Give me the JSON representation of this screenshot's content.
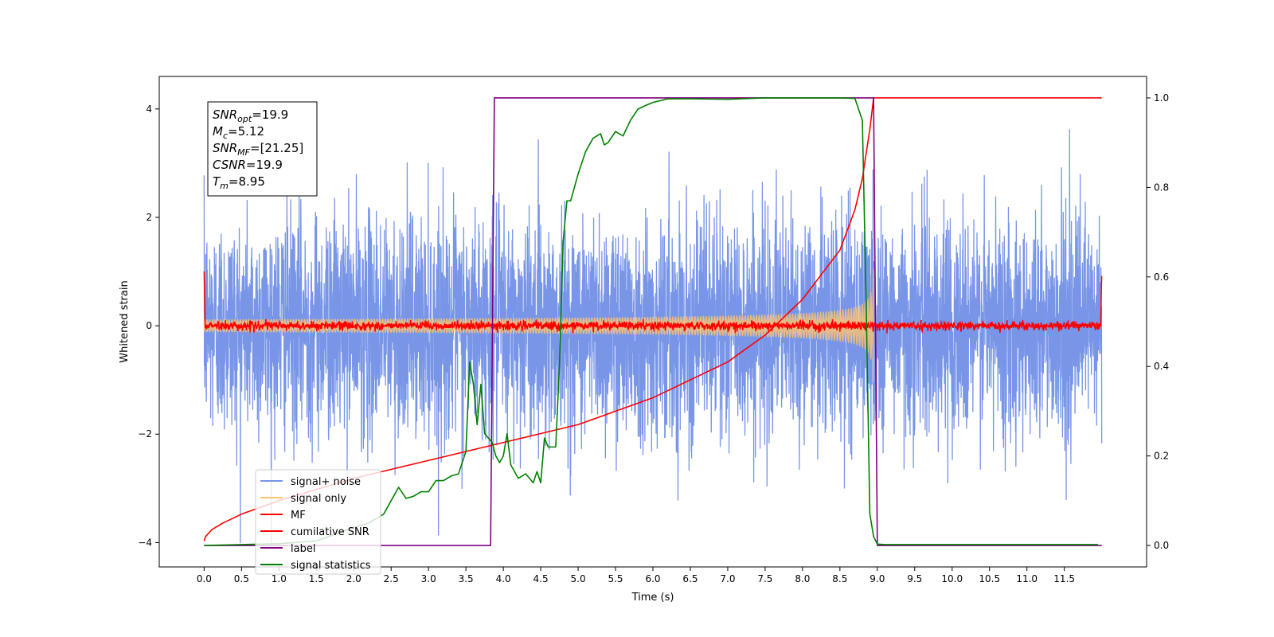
{
  "chart_data": {
    "type": "line",
    "title": "",
    "xlabel": "Time (s)",
    "ylabel": "Whitened strain",
    "xlim": [
      -0.6,
      12.6
    ],
    "ylim": [
      -4.45,
      4.6
    ],
    "y2lim": [
      -0.048,
      1.048
    ],
    "xticks": [
      0.0,
      0.5,
      1.0,
      1.5,
      2.0,
      2.5,
      3.0,
      3.5,
      4.0,
      4.5,
      5.0,
      5.5,
      6.0,
      6.5,
      7.0,
      7.5,
      8.0,
      8.5,
      9.0,
      9.5,
      10.0,
      10.5,
      11.0,
      11.5
    ],
    "xtick_labels": [
      "0.0",
      "0.5",
      "1.0",
      "1.5",
      "2.0",
      "2.5",
      "3.0",
      "3.5",
      "4.0",
      "4.5",
      "5.0",
      "5.5",
      "6.0",
      "6.5",
      "7.0",
      "7.5",
      "8.0",
      "8.5",
      "9.0",
      "9.5",
      "10.0",
      "10.5",
      "11.0",
      "11.5"
    ],
    "yticks": [
      -4,
      -2,
      0,
      2,
      4
    ],
    "ytick_labels": [
      "−4",
      "−2",
      "0",
      "2",
      "4"
    ],
    "y2ticks": [
      0.0,
      0.2,
      0.4,
      0.6,
      0.8,
      1.0
    ],
    "y2tick_labels": [
      "0.0",
      "0.2",
      "0.4",
      "0.6",
      "0.8",
      "1.0"
    ],
    "grid": false,
    "legend_position": "lower-left",
    "annotation": {
      "lines": [
        {
          "base": "SNR",
          "sub": "opt",
          "value": "=19.9"
        },
        {
          "base": "M",
          "sub": "c",
          "value": "=5.12"
        },
        {
          "base": "SNR",
          "sub": "MF",
          "value": "=[21.25]"
        },
        {
          "base": "CSNR",
          "sub": "",
          "value": "=19.9"
        },
        {
          "base": "T",
          "sub": "m",
          "value": "=8.95"
        }
      ]
    },
    "series": [
      {
        "name": "signal+ noise",
        "color": "#7895e8",
        "axis": "left",
        "kind": "noise",
        "x_range": [
          0.0,
          12.0
        ],
        "amplitude_std": 1.0,
        "peak_min": -4.0,
        "peak_max": 4.15
      },
      {
        "name": "signal only",
        "color": "#ffc36e",
        "axis": "left",
        "kind": "chirp",
        "x_range": [
          0.0,
          8.95
        ],
        "envelope_start": 0.12,
        "envelope_peak": 1.05,
        "merger_time": 8.95
      },
      {
        "name": "MF",
        "color": "#ff0000",
        "axis": "left",
        "kind": "noise",
        "x_range": [
          0.0,
          12.0
        ],
        "amplitude_std": 0.04,
        "edge_values": [
          1.0,
          0.92
        ]
      },
      {
        "name": "cumilative SNR",
        "color": "#ff0000",
        "axis": "right",
        "x": [
          0.0,
          0.02,
          0.1,
          0.25,
          0.5,
          1.0,
          1.5,
          2.0,
          2.5,
          3.0,
          3.5,
          4.0,
          4.5,
          5.0,
          5.5,
          6.0,
          6.5,
          7.0,
          7.5,
          8.0,
          8.5,
          8.7,
          8.8,
          8.9,
          8.95,
          12.0
        ],
        "values": [
          0.01,
          0.02,
          0.035,
          0.05,
          0.07,
          0.1,
          0.125,
          0.15,
          0.17,
          0.19,
          0.21,
          0.23,
          0.25,
          0.27,
          0.3,
          0.33,
          0.37,
          0.41,
          0.47,
          0.55,
          0.66,
          0.75,
          0.82,
          0.93,
          1.0,
          1.0
        ]
      },
      {
        "name": "label",
        "color": "#800080",
        "axis": "right",
        "x": [
          0.0,
          3.83,
          3.88,
          8.9,
          8.95,
          9.0,
          12.0
        ],
        "values": [
          0.0,
          0.0,
          1.0,
          1.0,
          1.0,
          0.0,
          0.0
        ]
      },
      {
        "name": "signal statistics",
        "color": "#008000",
        "axis": "right",
        "x": [
          0.0,
          0.5,
          1.0,
          1.5,
          2.0,
          2.2,
          2.4,
          2.5,
          2.6,
          2.7,
          2.8,
          2.9,
          3.0,
          3.1,
          3.2,
          3.3,
          3.4,
          3.5,
          3.55,
          3.6,
          3.65,
          3.7,
          3.75,
          3.8,
          3.85,
          3.9,
          3.95,
          4.0,
          4.05,
          4.1,
          4.2,
          4.3,
          4.35,
          4.4,
          4.45,
          4.5,
          4.55,
          4.6,
          4.65,
          4.7,
          4.75,
          4.8,
          4.85,
          4.9,
          5.0,
          5.1,
          5.2,
          5.3,
          5.35,
          5.4,
          5.5,
          5.6,
          5.7,
          5.8,
          5.9,
          6.0,
          6.2,
          6.5,
          7.0,
          7.5,
          8.0,
          8.5,
          8.7,
          8.8,
          8.85,
          8.9,
          8.95,
          9.0,
          9.1,
          10.0,
          11.0,
          11.95
        ],
        "values": [
          0.0,
          0.002,
          0.004,
          0.01,
          0.04,
          0.05,
          0.07,
          0.1,
          0.13,
          0.105,
          0.11,
          0.12,
          0.12,
          0.145,
          0.145,
          0.155,
          0.16,
          0.21,
          0.41,
          0.36,
          0.27,
          0.36,
          0.25,
          0.24,
          0.23,
          0.2,
          0.185,
          0.2,
          0.25,
          0.18,
          0.15,
          0.16,
          0.15,
          0.14,
          0.165,
          0.14,
          0.24,
          0.22,
          0.22,
          0.22,
          0.4,
          0.68,
          0.77,
          0.77,
          0.83,
          0.88,
          0.91,
          0.92,
          0.895,
          0.9,
          0.925,
          0.915,
          0.95,
          0.975,
          0.983,
          0.99,
          0.998,
          0.998,
          0.997,
          1.0,
          1.0,
          1.0,
          0.999,
          0.95,
          0.55,
          0.07,
          0.02,
          0.003,
          0.002,
          0.002,
          0.002,
          0.002
        ]
      }
    ]
  }
}
